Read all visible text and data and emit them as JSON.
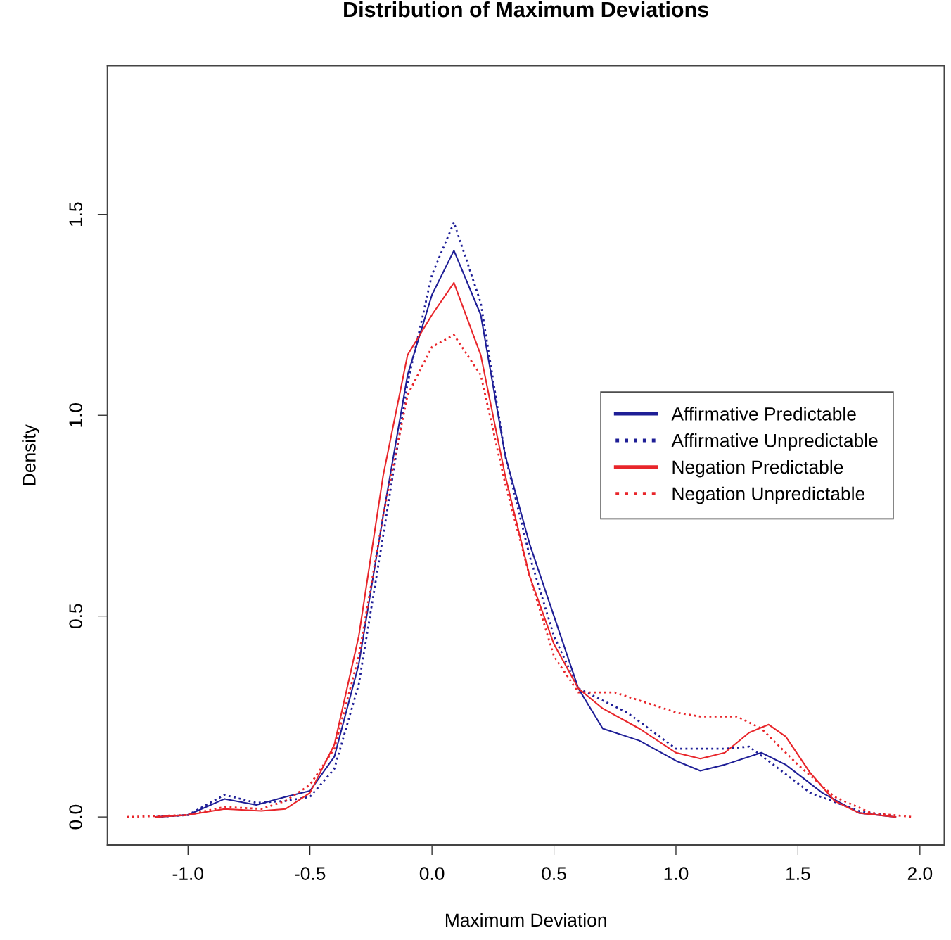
{
  "chart_data": {
    "type": "line",
    "title": "Distribution of Maximum Deviations",
    "xlabel": "Maximum Deviation",
    "ylabel": "Density",
    "xlim": [
      -1.33,
      2.1
    ],
    "ylim": [
      -0.07,
      1.87
    ],
    "xticks": [
      {
        "value": -1.0,
        "label": "-1.0"
      },
      {
        "value": -0.5,
        "label": "-0.5"
      },
      {
        "value": 0.0,
        "label": "0.0"
      },
      {
        "value": 0.5,
        "label": "0.5"
      },
      {
        "value": 1.0,
        "label": "1.0"
      },
      {
        "value": 1.5,
        "label": "1.5"
      },
      {
        "value": 2.0,
        "label": "2.0"
      }
    ],
    "yticks": [
      {
        "value": 0.0,
        "label": "0.0"
      },
      {
        "value": 0.5,
        "label": "0.5"
      },
      {
        "value": 1.0,
        "label": "1.0"
      },
      {
        "value": 1.5,
        "label": "1.5"
      }
    ],
    "grid": false,
    "legend": "right",
    "marker": "none",
    "series": [
      {
        "name": "Affirmative Predictable",
        "color": "#1e1e96",
        "line_style": "solid",
        "x": [
          -1.13,
          -1.0,
          -0.85,
          -0.72,
          -0.6,
          -0.5,
          -0.4,
          -0.3,
          -0.2,
          -0.1,
          0.0,
          0.09,
          0.2,
          0.3,
          0.4,
          0.5,
          0.6,
          0.7,
          0.85,
          1.0,
          1.1,
          1.2,
          1.35,
          1.45,
          1.6,
          1.75,
          1.9
        ],
        "values": [
          0,
          0.005,
          0.045,
          0.03,
          0.05,
          0.065,
          0.15,
          0.38,
          0.75,
          1.1,
          1.3,
          1.41,
          1.25,
          0.9,
          0.68,
          0.5,
          0.32,
          0.22,
          0.19,
          0.14,
          0.115,
          0.13,
          0.16,
          0.13,
          0.06,
          0.01,
          0
        ]
      },
      {
        "name": "Affirmative Unpredictable",
        "color": "#1e1e96",
        "line_style": "dotted",
        "x": [
          -1.13,
          -1.0,
          -0.85,
          -0.72,
          -0.6,
          -0.5,
          -0.4,
          -0.3,
          -0.2,
          -0.1,
          0.0,
          0.09,
          0.2,
          0.3,
          0.4,
          0.5,
          0.6,
          0.8,
          1.0,
          1.2,
          1.3,
          1.4,
          1.55,
          1.75,
          1.9
        ],
        "values": [
          0,
          0.005,
          0.055,
          0.035,
          0.04,
          0.05,
          0.12,
          0.33,
          0.7,
          1.08,
          1.35,
          1.48,
          1.28,
          0.9,
          0.65,
          0.45,
          0.32,
          0.26,
          0.17,
          0.17,
          0.175,
          0.13,
          0.06,
          0.015,
          0
        ]
      },
      {
        "name": "Negation Predictable",
        "color": "#e8252a",
        "line_style": "solid",
        "x": [
          -1.13,
          -1.0,
          -0.85,
          -0.7,
          -0.6,
          -0.5,
          -0.4,
          -0.3,
          -0.2,
          -0.1,
          0.0,
          0.09,
          0.2,
          0.3,
          0.4,
          0.5,
          0.6,
          0.7,
          0.85,
          1.0,
          1.1,
          1.2,
          1.3,
          1.38,
          1.45,
          1.55,
          1.65,
          1.75,
          1.9
        ],
        "values": [
          0,
          0.005,
          0.02,
          0.015,
          0.02,
          0.06,
          0.18,
          0.45,
          0.85,
          1.15,
          1.25,
          1.33,
          1.15,
          0.85,
          0.6,
          0.43,
          0.32,
          0.27,
          0.22,
          0.16,
          0.145,
          0.16,
          0.21,
          0.23,
          0.2,
          0.11,
          0.04,
          0.01,
          0
        ]
      },
      {
        "name": "Negation Unpredictable",
        "color": "#e8252a",
        "line_style": "dotted",
        "x": [
          -1.25,
          -1.0,
          -0.85,
          -0.7,
          -0.6,
          -0.5,
          -0.4,
          -0.3,
          -0.2,
          -0.1,
          0.0,
          0.09,
          0.2,
          0.3,
          0.4,
          0.5,
          0.6,
          0.75,
          0.9,
          1.0,
          1.1,
          1.25,
          1.35,
          1.5,
          1.65,
          1.8,
          1.97
        ],
        "values": [
          0,
          0.005,
          0.025,
          0.02,
          0.04,
          0.08,
          0.17,
          0.4,
          0.75,
          1.05,
          1.17,
          1.2,
          1.1,
          0.83,
          0.6,
          0.4,
          0.31,
          0.31,
          0.28,
          0.26,
          0.25,
          0.25,
          0.22,
          0.13,
          0.05,
          0.01,
          0
        ]
      }
    ]
  }
}
